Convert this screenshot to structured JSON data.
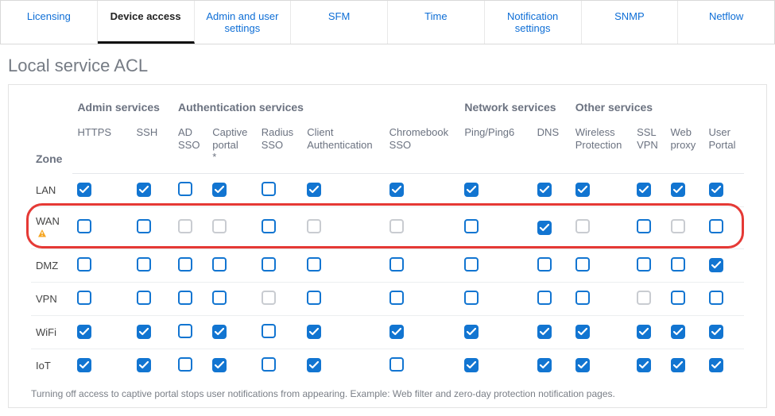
{
  "tabs": [
    {
      "label": "Licensing",
      "active": false
    },
    {
      "label": "Device access",
      "active": true
    },
    {
      "label": "Admin and user settings",
      "active": false
    },
    {
      "label": "SFM",
      "active": false
    },
    {
      "label": "Time",
      "active": false
    },
    {
      "label": "Notification settings",
      "active": false
    },
    {
      "label": "SNMP",
      "active": false
    },
    {
      "label": "Netflow",
      "active": false
    }
  ],
  "section_title": "Local service ACL",
  "zone_header": "Zone",
  "groups": [
    {
      "label": "Admin services",
      "span": 2
    },
    {
      "label": "Authentication services",
      "span": 5
    },
    {
      "label": "Network services",
      "span": 2
    },
    {
      "label": "Other services",
      "span": 4
    }
  ],
  "columns": [
    "HTTPS",
    "SSH",
    "AD\nSSO",
    "Captive\nportal\n*",
    "Radius\nSSO",
    "Client\nAuthentication",
    "Chromebook\nSSO",
    "Ping/Ping6",
    "DNS",
    "Wireless\nProtection",
    "SSL\nVPN",
    "Web\nproxy",
    "User\nPortal"
  ],
  "rows": [
    {
      "zone": "LAN",
      "warn": false,
      "highlight": false,
      "cells": [
        {
          "s": "c"
        },
        {
          "s": "c"
        },
        {
          "s": "u"
        },
        {
          "s": "c"
        },
        {
          "s": "u"
        },
        {
          "s": "c"
        },
        {
          "s": "c"
        },
        {
          "s": "c"
        },
        {
          "s": "c"
        },
        {
          "s": "c"
        },
        {
          "s": "c"
        },
        {
          "s": "c"
        },
        {
          "s": "c"
        }
      ]
    },
    {
      "zone": "WAN",
      "warn": true,
      "highlight": true,
      "cells": [
        {
          "s": "u"
        },
        {
          "s": "u"
        },
        {
          "s": "d"
        },
        {
          "s": "d"
        },
        {
          "s": "u"
        },
        {
          "s": "d"
        },
        {
          "s": "d"
        },
        {
          "s": "u"
        },
        {
          "s": "c"
        },
        {
          "s": "d"
        },
        {
          "s": "u"
        },
        {
          "s": "d"
        },
        {
          "s": "u"
        }
      ]
    },
    {
      "zone": "DMZ",
      "warn": false,
      "highlight": false,
      "cells": [
        {
          "s": "u"
        },
        {
          "s": "u"
        },
        {
          "s": "u"
        },
        {
          "s": "u"
        },
        {
          "s": "u"
        },
        {
          "s": "u"
        },
        {
          "s": "u"
        },
        {
          "s": "u"
        },
        {
          "s": "u"
        },
        {
          "s": "u"
        },
        {
          "s": "u"
        },
        {
          "s": "u"
        },
        {
          "s": "c"
        }
      ]
    },
    {
      "zone": "VPN",
      "warn": false,
      "highlight": false,
      "cells": [
        {
          "s": "u"
        },
        {
          "s": "u"
        },
        {
          "s": "u"
        },
        {
          "s": "u"
        },
        {
          "s": "d"
        },
        {
          "s": "u"
        },
        {
          "s": "u"
        },
        {
          "s": "u"
        },
        {
          "s": "u"
        },
        {
          "s": "u"
        },
        {
          "s": "d"
        },
        {
          "s": "u"
        },
        {
          "s": "u"
        }
      ]
    },
    {
      "zone": "WiFi",
      "warn": false,
      "highlight": false,
      "cells": [
        {
          "s": "c"
        },
        {
          "s": "c"
        },
        {
          "s": "u"
        },
        {
          "s": "c"
        },
        {
          "s": "u"
        },
        {
          "s": "c"
        },
        {
          "s": "c"
        },
        {
          "s": "c"
        },
        {
          "s": "c"
        },
        {
          "s": "c"
        },
        {
          "s": "c"
        },
        {
          "s": "c"
        },
        {
          "s": "c"
        }
      ]
    },
    {
      "zone": "IoT",
      "warn": false,
      "highlight": false,
      "cells": [
        {
          "s": "c"
        },
        {
          "s": "c"
        },
        {
          "s": "u"
        },
        {
          "s": "c"
        },
        {
          "s": "u"
        },
        {
          "s": "c"
        },
        {
          "s": "u"
        },
        {
          "s": "c"
        },
        {
          "s": "c"
        },
        {
          "s": "c"
        },
        {
          "s": "c"
        },
        {
          "s": "c"
        },
        {
          "s": "c"
        }
      ]
    }
  ],
  "footnote": "Turning off access to captive portal stops user notifications from appearing. Example: Web filter and zero-day protection notification pages.",
  "colors": {
    "accent": "#1275d1",
    "link": "#0e6ed6",
    "muted": "#6b7280",
    "border": "#e3e3e3",
    "highlight_border": "#e53935",
    "disabled_border": "#c9ccd1",
    "warn_fill": "#f5a623"
  }
}
